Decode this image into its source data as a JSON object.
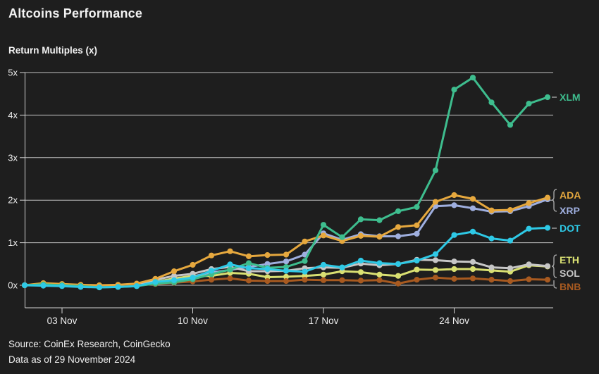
{
  "header": {
    "title": "Altcoins Performance",
    "subtitle": "Return Multiples (x)"
  },
  "footer": {
    "source_line": "Source: CoinEx Research, CoinGecko",
    "asof_line": "Data as of 29 November 2024"
  },
  "theme": {
    "background": "#1e1e1e",
    "text_color": "#f2f2f2",
    "grid_color": "#d4d4d4",
    "bracket_color": "#aeaeae"
  },
  "chart_data": {
    "type": "line",
    "title": "Altcoins Performance",
    "ylabel": "Return Multiples (x)",
    "ylim": [
      0,
      5
    ],
    "grid": true,
    "legend_position": "right-edge-labels",
    "x": [
      "1 Nov",
      "2 Nov",
      "3 Nov",
      "4 Nov",
      "5 Nov",
      "6 Nov",
      "7 Nov",
      "8 Nov",
      "9 Nov",
      "10 Nov",
      "11 Nov",
      "12 Nov",
      "13 Nov",
      "14 Nov",
      "15 Nov",
      "16 Nov",
      "17 Nov",
      "18 Nov",
      "19 Nov",
      "20 Nov",
      "21 Nov",
      "22 Nov",
      "23 Nov",
      "24 Nov",
      "25 Nov",
      "26 Nov",
      "27 Nov",
      "28 Nov",
      "29 Nov"
    ],
    "x_tick_labels": [
      {
        "label": "03 Nov",
        "index": 2
      },
      {
        "label": "10 Nov",
        "index": 9
      },
      {
        "label": "17 Nov",
        "index": 16
      },
      {
        "label": "24 Nov",
        "index": 23
      }
    ],
    "y_tick_labels": [
      "0x",
      "1x",
      "2x",
      "3x",
      "4x",
      "5x"
    ],
    "series": [
      {
        "name": "XLM",
        "color": "#3ebd8e",
        "values": [
          0.0,
          0.02,
          0.0,
          -0.02,
          -0.05,
          -0.04,
          -0.02,
          0.04,
          0.07,
          0.14,
          0.26,
          0.37,
          0.52,
          0.41,
          0.43,
          0.57,
          1.42,
          1.13,
          1.55,
          1.53,
          1.74,
          1.84,
          2.7,
          4.6,
          4.88,
          4.3,
          3.77,
          4.27,
          4.42
        ]
      },
      {
        "name": "ADA",
        "color": "#e6a83e",
        "values": [
          0.0,
          0.05,
          0.03,
          0.01,
          0.0,
          0.01,
          0.04,
          0.15,
          0.33,
          0.48,
          0.7,
          0.8,
          0.68,
          0.71,
          0.72,
          1.03,
          1.17,
          1.04,
          1.16,
          1.14,
          1.37,
          1.41,
          1.96,
          2.12,
          2.03,
          1.76,
          1.77,
          1.93,
          2.06
        ]
      },
      {
        "name": "XRP",
        "color": "#9fafdf",
        "values": [
          0.0,
          0.01,
          0.0,
          -0.01,
          -0.02,
          -0.01,
          0.01,
          0.08,
          0.15,
          0.21,
          0.3,
          0.36,
          0.43,
          0.5,
          0.56,
          0.72,
          1.22,
          1.07,
          1.2,
          1.15,
          1.15,
          1.21,
          1.86,
          1.88,
          1.81,
          1.73,
          1.74,
          1.86,
          2.02
        ]
      },
      {
        "name": "DOT",
        "color": "#2ec9e6",
        "values": [
          0.0,
          -0.01,
          -0.02,
          -0.04,
          -0.05,
          -0.04,
          -0.02,
          0.08,
          0.12,
          0.18,
          0.34,
          0.49,
          0.4,
          0.38,
          0.34,
          0.32,
          0.48,
          0.42,
          0.58,
          0.52,
          0.5,
          0.58,
          0.73,
          1.18,
          1.26,
          1.1,
          1.05,
          1.33,
          1.35
        ]
      },
      {
        "name": "ETH",
        "color": "#d9e072",
        "values": [
          0.0,
          0.01,
          0.0,
          -0.01,
          -0.03,
          -0.02,
          0.0,
          0.08,
          0.16,
          0.22,
          0.22,
          0.29,
          0.27,
          0.19,
          0.2,
          0.22,
          0.25,
          0.33,
          0.31,
          0.25,
          0.22,
          0.37,
          0.36,
          0.38,
          0.38,
          0.35,
          0.32,
          0.47,
          0.44
        ]
      },
      {
        "name": "SOL",
        "color": "#c6c6c6",
        "values": [
          0.0,
          0.02,
          0.01,
          0.0,
          -0.01,
          0.0,
          0.02,
          0.13,
          0.22,
          0.27,
          0.38,
          0.43,
          0.33,
          0.33,
          0.34,
          0.4,
          0.42,
          0.41,
          0.51,
          0.47,
          0.5,
          0.6,
          0.59,
          0.56,
          0.55,
          0.42,
          0.4,
          0.49,
          0.45
        ]
      },
      {
        "name": "BNB",
        "color": "#a85a20",
        "values": [
          0.0,
          0.01,
          0.0,
          -0.01,
          -0.02,
          -0.01,
          0.0,
          0.03,
          0.06,
          0.09,
          0.13,
          0.16,
          0.11,
          0.1,
          0.1,
          0.13,
          0.12,
          0.12,
          0.11,
          0.12,
          0.04,
          0.13,
          0.18,
          0.15,
          0.16,
          0.13,
          0.1,
          0.14,
          0.13
        ]
      }
    ]
  }
}
